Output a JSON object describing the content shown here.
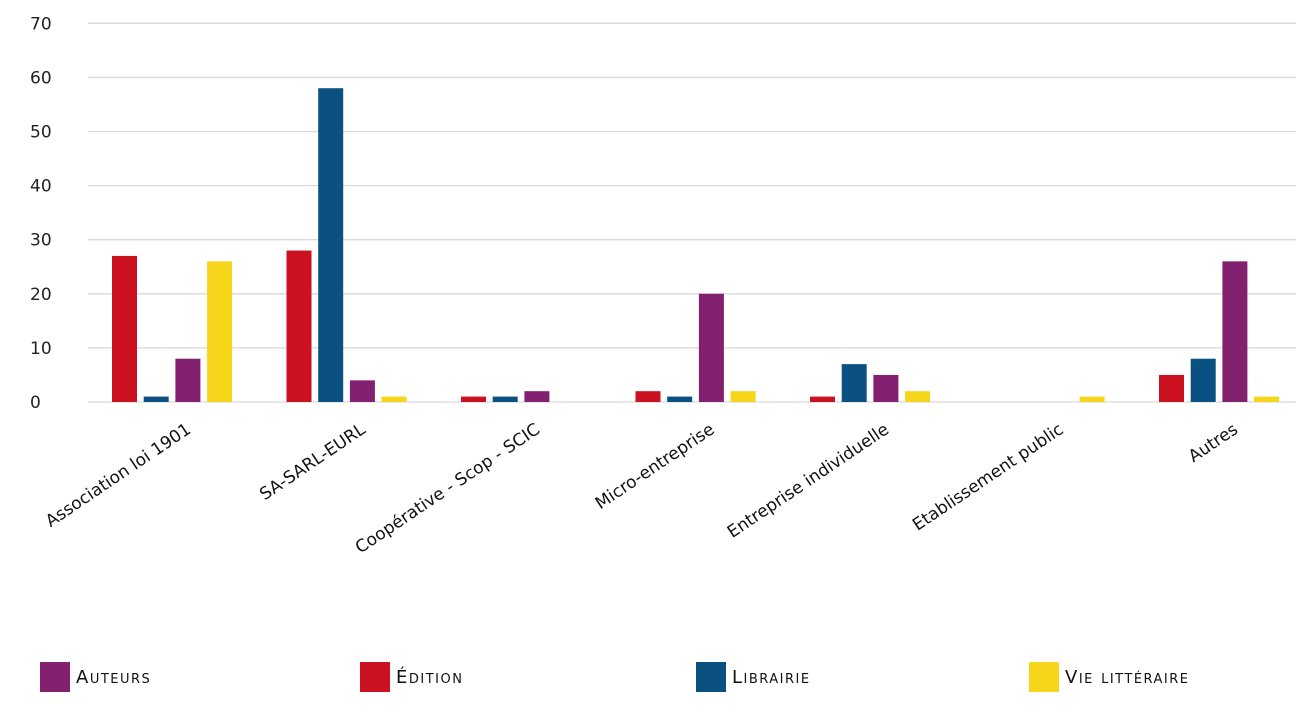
{
  "chart_data": {
    "type": "bar",
    "categories": [
      "Association loi 1901",
      "SA-SARL-EURL",
      "Coopérative - Scop - SCIC",
      "Micro-entreprise",
      "Entreprise individuelle",
      "Etablissement public",
      "Autres"
    ],
    "series": [
      {
        "name": "Édition",
        "color": "#cc1221",
        "values": [
          27,
          28,
          1,
          2,
          1,
          0,
          5
        ]
      },
      {
        "name": "Librairie",
        "color": "#0a5080",
        "values": [
          1,
          58,
          1,
          1,
          7,
          0,
          8
        ]
      },
      {
        "name": "Auteurs",
        "color": "#83206f",
        "values": [
          8,
          4,
          2,
          20,
          5,
          0,
          26
        ]
      },
      {
        "name": "Vie littéraire",
        "color": "#f7d51b",
        "values": [
          26,
          1,
          0,
          2,
          2,
          1,
          1
        ]
      }
    ],
    "yticks": [
      "0",
      "10",
      "20",
      "30",
      "40",
      "50",
      "60",
      "70"
    ],
    "ylim": [
      0,
      70
    ],
    "grid": true,
    "legend": {
      "position": "bottom",
      "items": [
        {
          "label": "Auteurs",
          "color": "#83206f"
        },
        {
          "label": "Édition",
          "color": "#cc1221"
        },
        {
          "label": "Librairie",
          "color": "#0a5080"
        },
        {
          "label": "Vie littéraire",
          "color": "#f7d51b"
        }
      ]
    }
  }
}
